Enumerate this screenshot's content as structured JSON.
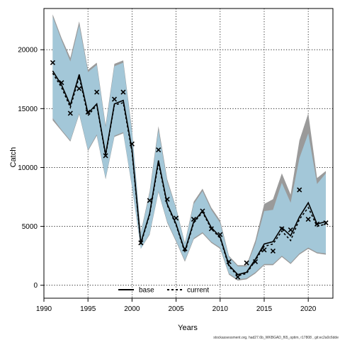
{
  "chart_data": {
    "type": "line",
    "xlabel": "Years",
    "ylabel": "Catch",
    "xlim": [
      1990,
      2022.8
    ],
    "ylim": [
      -1100,
      23500
    ],
    "x_ticks": [
      1990,
      1995,
      2000,
      2005,
      2010,
      2015,
      2020
    ],
    "y_ticks": [
      0,
      5000,
      10000,
      15000,
      20000
    ],
    "grid": true,
    "legend_position": "bottom-center",
    "legend": [
      {
        "label": "base",
        "style": "solid",
        "color": "#000000"
      },
      {
        "label": "current",
        "style": "dashed",
        "color": "#000000"
      }
    ],
    "x": [
      1991,
      1992,
      1993,
      1994,
      1995,
      1996,
      1997,
      1998,
      1999,
      2000,
      2001,
      2002,
      2003,
      2004,
      2005,
      2006,
      2007,
      2008,
      2009,
      2010,
      2011,
      2012,
      2013,
      2014,
      2015,
      2016,
      2017,
      2018,
      2019,
      2020,
      2021,
      2022
    ],
    "series": [
      {
        "name": "base",
        "role": "band",
        "color": "#9a9a9a",
        "upper": [
          23000,
          21000,
          19300,
          22400,
          18300,
          18900,
          13600,
          18800,
          19100,
          13200,
          4500,
          8000,
          13500,
          9000,
          6600,
          3600,
          7100,
          8200,
          6600,
          5500,
          2500,
          1700,
          1700,
          3800,
          6900,
          7300,
          9500,
          7700,
          12300,
          14600,
          9100,
          9700
        ],
        "lower": [
          14000,
          13100,
          12200,
          14500,
          11400,
          12700,
          9000,
          12600,
          12900,
          8300,
          3100,
          4300,
          7900,
          5300,
          3700,
          2000,
          3900,
          4400,
          3600,
          3100,
          900,
          400,
          500,
          1000,
          1700,
          1700,
          2400,
          1800,
          2600,
          3100,
          2700,
          2600
        ]
      },
      {
        "name": "current",
        "role": "band",
        "color": "#a3c7d8",
        "upper": [
          22800,
          20800,
          19000,
          22100,
          18100,
          18700,
          13400,
          18600,
          18900,
          13000,
          4400,
          7800,
          13200,
          8800,
          6500,
          3500,
          6900,
          8000,
          6400,
          5300,
          2400,
          1600,
          1600,
          3500,
          6300,
          6400,
          8700,
          7000,
          10800,
          12900,
          8600,
          9500
        ],
        "lower": [
          14200,
          13200,
          12300,
          14600,
          11500,
          12800,
          9100,
          12700,
          13000,
          8400,
          3100,
          4400,
          8000,
          5400,
          3800,
          2100,
          4000,
          4500,
          3700,
          3200,
          1000,
          500,
          600,
          1100,
          1800,
          1800,
          2500,
          1900,
          2700,
          3200,
          2800,
          2700
        ]
      },
      {
        "name": "base",
        "role": "median",
        "values": [
          18200,
          17000,
          15300,
          17900,
          14600,
          15400,
          11100,
          15400,
          15700,
          11500,
          3600,
          6100,
          10600,
          6900,
          5200,
          2900,
          5400,
          6300,
          4900,
          4100,
          1700,
          900,
          1100,
          2200,
          3500,
          3700,
          4900,
          4200,
          5800,
          7000,
          5200,
          5400
        ]
      },
      {
        "name": "current",
        "role": "median",
        "values": [
          18000,
          16800,
          15100,
          17700,
          14400,
          15300,
          11000,
          15300,
          15500,
          11300,
          3500,
          6000,
          10400,
          6800,
          5100,
          2800,
          5300,
          6200,
          4800,
          4000,
          1600,
          800,
          1000,
          2100,
          3300,
          3500,
          4600,
          3800,
          5600,
          6600,
          5000,
          5200
        ]
      },
      {
        "name": "observed",
        "role": "points",
        "marker": "x",
        "values": [
          18900,
          17200,
          14600,
          16700,
          14700,
          16400,
          11000,
          15800,
          16400,
          12000,
          3600,
          7200,
          11500,
          7300,
          5700,
          3100,
          5600,
          6300,
          4800,
          4300,
          2000,
          700,
          1900,
          2000,
          3000,
          2900,
          4800,
          4700,
          8100,
          5600,
          5200,
          5300
        ]
      }
    ]
  },
  "footer_text": "stockassessment.org, had27.6b_WKBGAD_f65_optim, r17808 , git:ec2a0c6dde"
}
